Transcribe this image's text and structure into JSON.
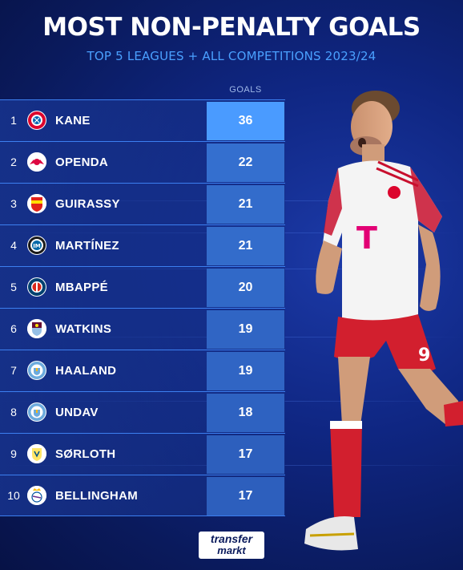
{
  "header": {
    "title": "MOST NON-PENALTY GOALS",
    "subtitle": "TOP 5 LEAGUES + ALL COMPETITIONS 2023/24",
    "goals_column_label": "GOALS"
  },
  "rows": [
    {
      "rank": "1",
      "name": "KANE",
      "goals": "36",
      "badge": "bayern-munich-crest",
      "goal_count": 36
    },
    {
      "rank": "2",
      "name": "OPENDA",
      "goals": "22",
      "badge": "rb-leipzig-crest",
      "goal_count": 22
    },
    {
      "rank": "3",
      "name": "GUIRASSY",
      "goals": "21",
      "badge": "vfb-stuttgart-crest",
      "goal_count": 21
    },
    {
      "rank": "4",
      "name": "MARTÍNEZ",
      "goals": "21",
      "badge": "inter-milan-crest",
      "goal_count": 21
    },
    {
      "rank": "5",
      "name": "MBAPPÉ",
      "goals": "20",
      "badge": "psg-crest",
      "goal_count": 20
    },
    {
      "rank": "6",
      "name": "WATKINS",
      "goals": "19",
      "badge": "aston-villa-crest",
      "goal_count": 19
    },
    {
      "rank": "7",
      "name": "HAALAND",
      "goals": "19",
      "badge": "manchester-city-crest",
      "goal_count": 19
    },
    {
      "rank": "8",
      "name": "UNDAV",
      "goals": "18",
      "badge": "manchester-city-crest",
      "goal_count": 18
    },
    {
      "rank": "9",
      "name": "SØRLOTH",
      "goals": "17",
      "badge": "villarreal-crest",
      "goal_count": 17
    },
    {
      "rank": "10",
      "name": "BELLINGHAM",
      "goals": "17",
      "badge": "real-madrid-crest",
      "goal_count": 17
    }
  ],
  "player_photo": {
    "shirt_sponsor": "T",
    "shirt_number": "9",
    "kit_colors": {
      "shirt": "#f4f4f4",
      "shorts": "#d21f2e",
      "socks": "#d21f2e",
      "trim": "#c8102e"
    }
  },
  "brand": {
    "logo_line1": "transfer",
    "logo_line2": "markt"
  },
  "colors": {
    "title": "#ffffff",
    "subtitle": "#4aa0ff",
    "row_line": "#3c7ff0",
    "goals_high": "#4a9bff",
    "goals_low": "#1d3f9a"
  }
}
